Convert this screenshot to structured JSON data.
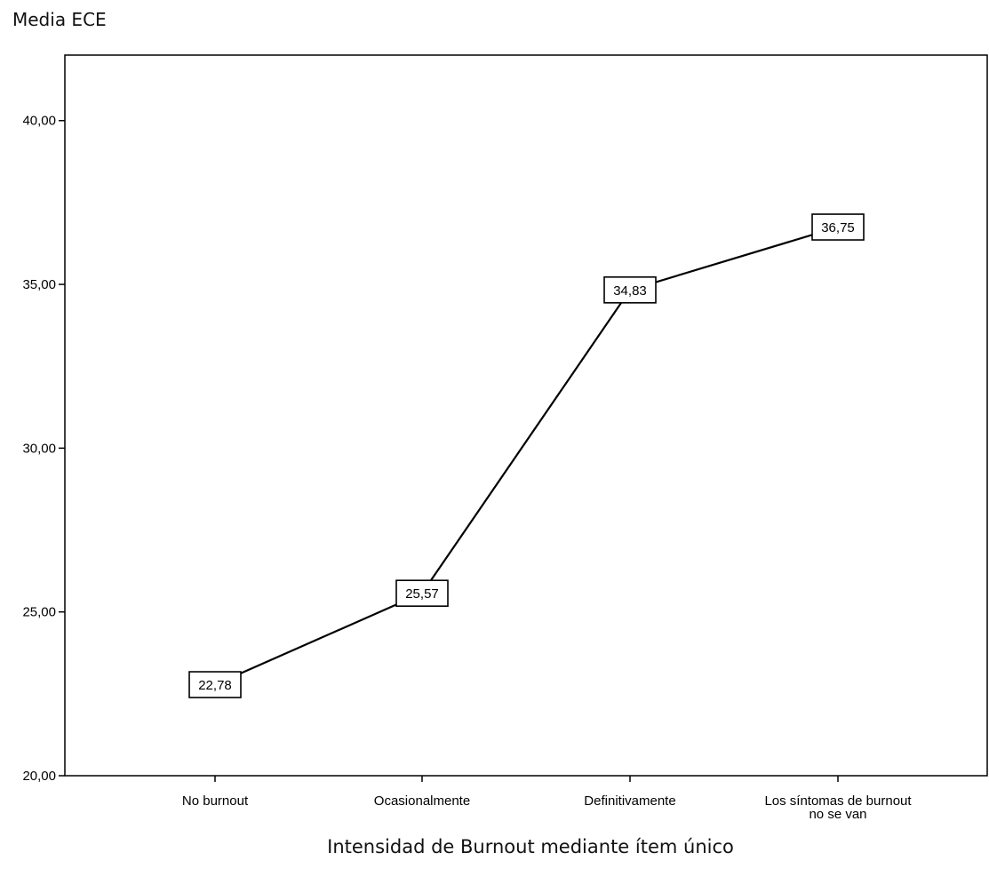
{
  "chart_data": {
    "type": "line",
    "title": "",
    "ylabel": "Media ECE",
    "xlabel": "Intensidad de Burnout mediante ítem único",
    "categories": [
      "No burnout",
      "Ocasionalmente",
      "Definitivamente",
      "Los síntomas de burnout no se van"
    ],
    "category_lines": [
      [
        "No burnout"
      ],
      [
        "Ocasionalmente"
      ],
      [
        "Definitivamente"
      ],
      [
        "Los síntomas de burnout",
        "no se van"
      ]
    ],
    "values": [
      22.78,
      25.57,
      34.83,
      36.75
    ],
    "value_labels": [
      "22,78",
      "25,57",
      "34,83",
      "36,75"
    ],
    "ylim": [
      20,
      42
    ],
    "yticks": [
      20,
      25,
      30,
      35,
      40
    ],
    "ytick_labels": [
      "20,00",
      "25,00",
      "30,00",
      "35,00",
      "40,00"
    ],
    "grid": false,
    "line_color": "#000000"
  }
}
